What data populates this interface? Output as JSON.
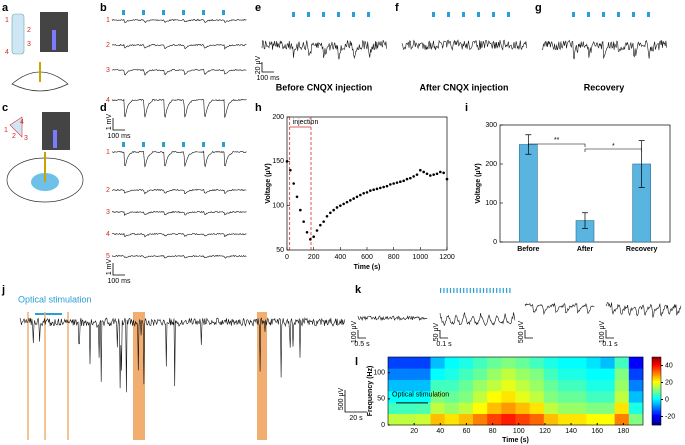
{
  "panel_letters": [
    "a",
    "b",
    "c",
    "d",
    "e",
    "f",
    "g",
    "h",
    "i",
    "j",
    "k",
    "l"
  ],
  "a": {
    "labels": [
      "1",
      "2",
      "3",
      "4"
    ]
  },
  "b": {
    "trace_labels": [
      "1",
      "2",
      "3",
      "4"
    ],
    "scale": [
      "1 mV",
      "100 ms"
    ]
  },
  "c": {
    "labels": [
      "1",
      "2",
      "3",
      "4"
    ]
  },
  "d": {
    "trace_labels": [
      "1",
      "2",
      "3",
      "4",
      "5"
    ],
    "scale": [
      "1 mV",
      "100 ms"
    ]
  },
  "e": {
    "title": "Before CNQX injection",
    "scale": [
      "20 μV",
      "100 ms"
    ]
  },
  "f": {
    "title": "After CNQX injection"
  },
  "g": {
    "title": "Recovery"
  },
  "j": {
    "title": "Optical stimulation",
    "scale": [
      "500 μV",
      "20 s"
    ]
  },
  "k": {
    "scales": [
      [
        "100 μV",
        "0.5 s"
      ],
      [
        "50 μV",
        "0.1 s"
      ],
      [
        "500 μV"
      ],
      [
        "100 μV",
        "0.1 s"
      ]
    ]
  },
  "chart_data": [
    {
      "type": "scatter",
      "xlabel": "Time (s)",
      "ylabel": "Voltage (μV)",
      "annotation": "injection",
      "injection_span": [
        20,
        180
      ],
      "xlim": [
        0,
        1200
      ],
      "xticks": [
        0,
        200,
        400,
        600,
        800,
        1000,
        1200
      ],
      "ylim": [
        50,
        200
      ],
      "yticks": [
        50,
        100,
        150,
        200
      ],
      "color": "#000000",
      "x": [
        0,
        25,
        50,
        75,
        100,
        125,
        150,
        175,
        200,
        225,
        250,
        275,
        300,
        325,
        350,
        375,
        400,
        425,
        450,
        475,
        500,
        525,
        550,
        575,
        600,
        625,
        650,
        675,
        700,
        725,
        750,
        775,
        800,
        825,
        850,
        875,
        900,
        925,
        950,
        975,
        1000,
        1025,
        1050,
        1075,
        1100,
        1125,
        1150,
        1175,
        1200
      ],
      "y": [
        150,
        140,
        125,
        110,
        95,
        82,
        70,
        62,
        65,
        72,
        78,
        82,
        88,
        92,
        95,
        98,
        100,
        102,
        104,
        106,
        108,
        110,
        112,
        114,
        115,
        117,
        118,
        119,
        120,
        121,
        122,
        124,
        125,
        126,
        127,
        128,
        130,
        131,
        133,
        135,
        140,
        138,
        136,
        134,
        135,
        136,
        138,
        137,
        130
      ]
    },
    {
      "type": "bar",
      "ylabel": "Voltage (μV)",
      "categories": [
        "Before",
        "After",
        "Recovery"
      ],
      "values": [
        250,
        55,
        200
      ],
      "errors": [
        25,
        20,
        60
      ],
      "color": "#5ab4e0",
      "ylim": [
        0,
        300
      ],
      "yticks": [
        0,
        100,
        200,
        300
      ],
      "annotations": [
        "**",
        "*"
      ]
    },
    {
      "type": "heatmap",
      "xlabel": "Time (s)",
      "ylabel": "Frequency (Hz)",
      "annotation": "Optical stimulation",
      "xlim": [
        0,
        195
      ],
      "xticks": [
        20,
        40,
        60,
        80,
        100,
        120,
        140,
        160,
        180
      ],
      "ylim": [
        0,
        130
      ],
      "yticks": [
        0,
        50,
        100
      ],
      "clim": [
        -30,
        50
      ],
      "cticks": [
        -20,
        0,
        20,
        40
      ],
      "z": [
        [
          15,
          15,
          16,
          25,
          22,
          25,
          30,
          35,
          38,
          35,
          32,
          25,
          22,
          22,
          20,
          20,
          30,
          10
        ],
        [
          5,
          5,
          6,
          15,
          12,
          15,
          20,
          25,
          28,
          25,
          22,
          15,
          12,
          12,
          10,
          10,
          22,
          2
        ],
        [
          0,
          0,
          0,
          10,
          8,
          10,
          15,
          20,
          22,
          18,
          15,
          10,
          8,
          8,
          5,
          5,
          15,
          -5
        ],
        [
          -5,
          -5,
          -5,
          5,
          5,
          8,
          12,
          15,
          18,
          15,
          12,
          8,
          5,
          5,
          2,
          2,
          12,
          -10
        ],
        [
          -10,
          -10,
          -10,
          0,
          2,
          5,
          8,
          12,
          15,
          12,
          10,
          5,
          2,
          2,
          0,
          0,
          10,
          -15
        ],
        [
          -15,
          -15,
          -15,
          -5,
          0,
          2,
          5,
          8,
          10,
          8,
          5,
          2,
          0,
          0,
          -2,
          -5,
          5,
          -20
        ]
      ]
    }
  ]
}
